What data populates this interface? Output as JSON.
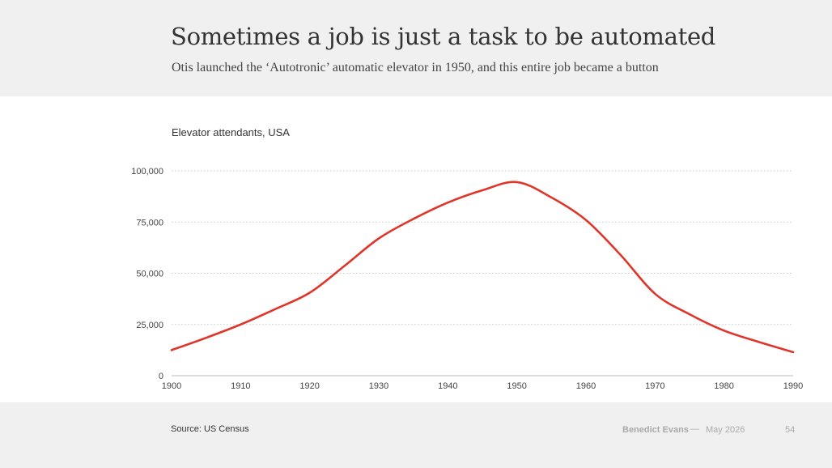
{
  "header": {
    "title": "Sometimes a job is just a task to be automated",
    "subtitle": "Otis launched the ‘Autotronic’ automatic elevator in 1950, and this entire job became a button"
  },
  "chart_label": "Elevator attendants, USA",
  "chart_data": {
    "type": "line",
    "title": "Elevator attendants, USA",
    "xlabel": "",
    "ylabel": "",
    "x": [
      1900,
      1905,
      1910,
      1915,
      1920,
      1925,
      1930,
      1935,
      1940,
      1945,
      1950,
      1955,
      1960,
      1965,
      1970,
      1975,
      1980,
      1985,
      1990
    ],
    "series": [
      {
        "values": [
          12500,
          18500,
          25000,
          32500,
          40500,
          53500,
          67000,
          76500,
          84500,
          90500,
          94500,
          87000,
          76000,
          59000,
          40000,
          30000,
          22000,
          16500,
          11500
        ]
      }
    ],
    "xlim": [
      1900,
      1990
    ],
    "ylim": [
      0,
      100000
    ],
    "xticks": [
      1900,
      1910,
      1920,
      1930,
      1940,
      1950,
      1960,
      1970,
      1980,
      1990
    ],
    "xtick_labels": [
      "1900",
      "1910",
      "1920",
      "1930",
      "1940",
      "1950",
      "1960",
      "1970",
      "1980",
      "1990"
    ],
    "yticks": [
      0,
      25000,
      50000,
      75000,
      100000
    ],
    "ytick_labels": [
      "0",
      "25,000",
      "50,000",
      "75,000",
      "100,000"
    ],
    "grid": "horizontal dotted",
    "line_color": "#e0352b",
    "grid_color": "#c8c8c8",
    "axis_color": "#bbbbbb"
  },
  "footer": {
    "source": "Source: US Census",
    "author": "Benedict Evans",
    "separator": "—",
    "date": "May 2026",
    "page_number": "54"
  }
}
